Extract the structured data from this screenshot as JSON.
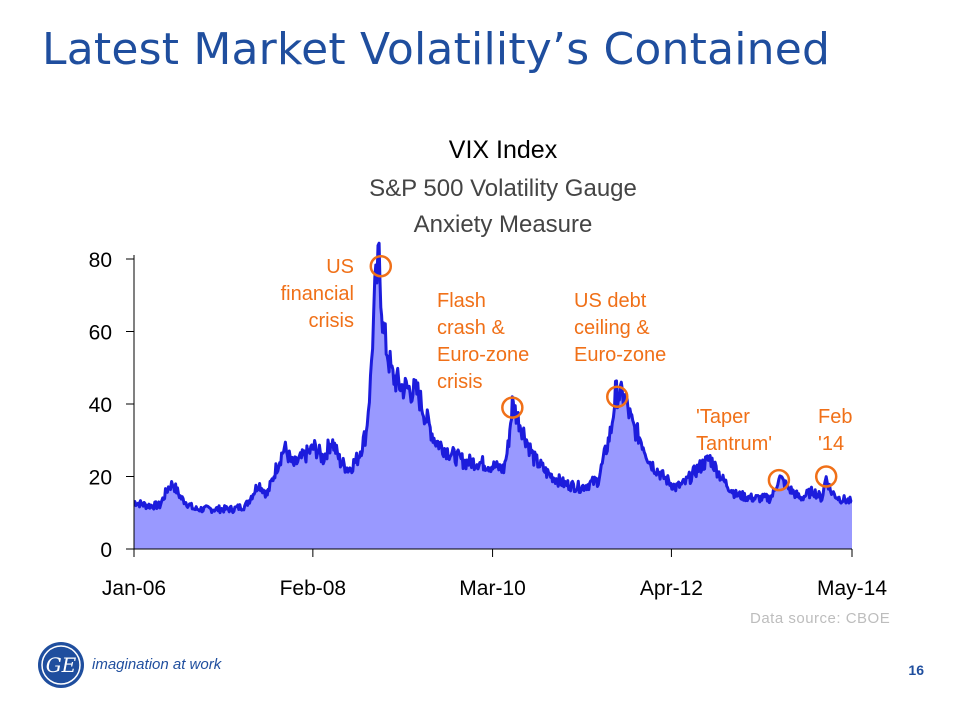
{
  "slide": {
    "title": "Latest Market Volatility’s Contained",
    "page_number": "16",
    "tagline": "imagination at work",
    "logo_text": "GE",
    "source": "Data source: CBOE"
  },
  "colors": {
    "title": "#1f4e9e",
    "line": "#1c1cdc",
    "fill": "#9999ff",
    "annotation": "#f07018",
    "source": "#bdbdbd"
  },
  "annotations": {
    "us_financial": [
      "US",
      "financial",
      "crisis"
    ],
    "flash_crash": [
      "Flash",
      "crash &",
      "Euro-zone",
      "crisis"
    ],
    "us_debt": [
      "US debt",
      "ceiling &",
      "Euro-zone"
    ],
    "taper": [
      "'Taper",
      "Tantrum'"
    ],
    "feb14": [
      "Feb",
      "'14"
    ]
  },
  "chart_data": {
    "type": "area",
    "title": "VIX Index",
    "subtitle_lines": [
      "S&P 500 Volatility Gauge",
      "Anxiety Measure"
    ],
    "xlabel": "",
    "ylabel": "",
    "x_ticks": [
      "Jan-06",
      "Feb-08",
      "Mar-10",
      "Apr-12",
      "May-14"
    ],
    "ylim": [
      0,
      80
    ],
    "y_ticks": [
      0,
      20,
      40,
      60,
      80
    ],
    "grid": false,
    "series": [
      {
        "x": [
          2006.0,
          2006.15,
          2006.3,
          2006.4,
          2006.45,
          2006.55,
          2006.7,
          2006.85,
          2007.0,
          2007.15,
          2007.3,
          2007.45,
          2007.55,
          2007.65,
          2007.75,
          2007.85,
          2008.0,
          2008.1,
          2008.2,
          2008.3,
          2008.4,
          2008.5,
          2008.6,
          2008.7,
          2008.75,
          2008.8,
          2008.85,
          2008.9,
          2009.0,
          2009.1,
          2009.2,
          2009.3,
          2009.4,
          2009.5,
          2009.6,
          2009.7,
          2009.85,
          2010.0,
          2010.15,
          2010.3,
          2010.35,
          2010.4,
          2010.5,
          2010.65,
          2010.8,
          2011.0,
          2011.2,
          2011.4,
          2011.55,
          2011.6,
          2011.7,
          2011.8,
          2011.9,
          2012.0,
          2012.15,
          2012.3,
          2012.4,
          2012.55,
          2012.7,
          2012.85,
          2013.0,
          2013.2,
          2013.4,
          2013.45,
          2013.5,
          2013.6,
          2013.75,
          2013.9,
          2014.0,
          2014.05,
          2014.1,
          2014.2,
          2014.35
        ],
        "values": [
          13,
          12,
          12,
          17,
          18,
          14,
          11,
          11,
          11,
          11,
          12,
          18,
          15,
          22,
          28,
          23,
          26,
          28,
          25,
          30,
          24,
          22,
          25,
          32,
          46,
          70,
          80,
          60,
          48,
          45,
          44,
          43,
          36,
          30,
          28,
          26,
          24,
          24,
          23,
          22,
          28,
          40,
          34,
          25,
          21,
          18,
          17,
          19,
          33,
          43,
          42,
          34,
          30,
          24,
          20,
          17,
          18,
          22,
          25,
          19,
          15,
          14,
          14,
          16,
          20,
          17,
          14,
          16,
          14,
          20,
          16,
          14,
          13
        ]
      }
    ]
  }
}
